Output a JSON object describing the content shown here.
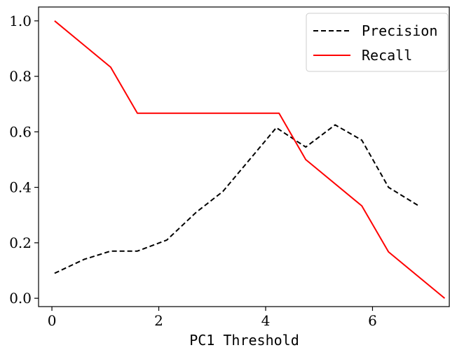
{
  "chart_data": {
    "type": "line",
    "title": "",
    "xlabel": "PC1 Threshold",
    "ylabel": "",
    "xlim": [
      -0.25,
      7.45
    ],
    "ylim": [
      -0.03,
      1.05
    ],
    "xticks": [
      0,
      2,
      4,
      6
    ],
    "yticks": [
      0.0,
      0.2,
      0.4,
      0.6,
      0.8,
      1.0
    ],
    "xtick_labels": [
      "0",
      "2",
      "4",
      "6"
    ],
    "ytick_labels": [
      "0.0",
      "0.2",
      "0.4",
      "0.6",
      "0.8",
      "1.0"
    ],
    "grid": false,
    "legend_position": "top-right",
    "series": [
      {
        "name": "Precision",
        "color": "#000000",
        "style": "dashed",
        "x": [
          0.05,
          0.6,
          1.1,
          1.6,
          2.15,
          2.7,
          3.2,
          3.7,
          4.2,
          4.75,
          5.3,
          5.8,
          6.3,
          6.85
        ],
        "y": [
          0.09,
          0.14,
          0.17,
          0.17,
          0.21,
          0.31,
          0.385,
          0.5,
          0.615,
          0.545,
          0.625,
          0.57,
          0.4,
          0.335
        ]
      },
      {
        "name": "Recall",
        "color": "#ff0000",
        "style": "solid",
        "x": [
          0.05,
          1.1,
          1.6,
          4.25,
          4.75,
          5.8,
          6.3,
          7.35
        ],
        "y": [
          1.0,
          0.833,
          0.667,
          0.667,
          0.5,
          0.333,
          0.167,
          0.0
        ]
      }
    ]
  }
}
